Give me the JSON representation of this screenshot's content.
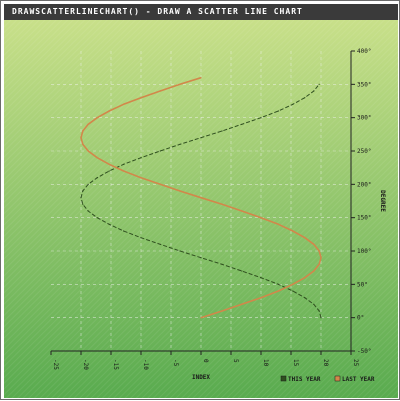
{
  "title": "DRAWSCATTERLINECHART() - DRAW A SCATTER LINE CHART",
  "colors": {
    "background_top": "#cde28c",
    "background_bottom": "#59ab4f",
    "title_bar": "#3a3a3a",
    "this_year": "#2f4f1f",
    "last_year": "#d2874a",
    "grid": "#f2f2f2",
    "axis": "#222222"
  },
  "chart_data": {
    "type": "scatter",
    "xlabel": "INDEX",
    "ylabel": "DEGREE",
    "xlim": [
      -25,
      25
    ],
    "ylim": [
      -50,
      400
    ],
    "x_ticks": [
      "-25",
      "-20",
      "-15",
      "-10",
      "-5",
      "0",
      "5",
      "10",
      "15",
      "20",
      "25"
    ],
    "y_ticks": [
      "-50°",
      "0°",
      "50°",
      "100°",
      "150°",
      "200°",
      "250°",
      "300°",
      "350°",
      "400°"
    ],
    "grid": true,
    "legend_position": "bottom-right",
    "legend": [
      "THIS YEAR",
      "LAST YEAR"
    ],
    "series": [
      {
        "name": "THIS YEAR",
        "style": "dashed",
        "points": [
          [
            20.0,
            0
          ],
          [
            19.7,
            10
          ],
          [
            18.8,
            20
          ],
          [
            17.3,
            30
          ],
          [
            15.3,
            40
          ],
          [
            12.9,
            50
          ],
          [
            10.0,
            60
          ],
          [
            6.8,
            70
          ],
          [
            3.5,
            80
          ],
          [
            0.0,
            90
          ],
          [
            -3.5,
            100
          ],
          [
            -6.8,
            110
          ],
          [
            -10.0,
            120
          ],
          [
            -12.9,
            130
          ],
          [
            -15.3,
            140
          ],
          [
            -17.3,
            150
          ],
          [
            -18.8,
            160
          ],
          [
            -19.7,
            170
          ],
          [
            -20.0,
            180
          ],
          [
            -19.7,
            190
          ],
          [
            -18.8,
            200
          ],
          [
            -17.3,
            210
          ],
          [
            -15.3,
            220
          ],
          [
            -12.9,
            230
          ],
          [
            -10.0,
            240
          ],
          [
            -6.8,
            250
          ],
          [
            -3.5,
            260
          ],
          [
            0.0,
            270
          ],
          [
            3.5,
            280
          ],
          [
            6.8,
            290
          ],
          [
            10.0,
            300
          ],
          [
            12.9,
            310
          ],
          [
            15.3,
            320
          ],
          [
            17.3,
            330
          ],
          [
            18.8,
            340
          ],
          [
            19.7,
            350
          ]
        ]
      },
      {
        "name": "LAST YEAR",
        "style": "solid",
        "points": [
          [
            0.0,
            0
          ],
          [
            3.5,
            10
          ],
          [
            6.8,
            20
          ],
          [
            10.0,
            30
          ],
          [
            12.9,
            40
          ],
          [
            15.3,
            50
          ],
          [
            17.3,
            60
          ],
          [
            18.8,
            70
          ],
          [
            19.7,
            80
          ],
          [
            20.0,
            90
          ],
          [
            19.7,
            100
          ],
          [
            18.8,
            110
          ],
          [
            17.3,
            120
          ],
          [
            15.3,
            130
          ],
          [
            12.9,
            140
          ],
          [
            10.0,
            150
          ],
          [
            6.8,
            160
          ],
          [
            3.5,
            170
          ],
          [
            0.0,
            180
          ],
          [
            -3.5,
            190
          ],
          [
            -6.8,
            200
          ],
          [
            -10.0,
            210
          ],
          [
            -12.9,
            220
          ],
          [
            -15.3,
            230
          ],
          [
            -17.3,
            240
          ],
          [
            -18.8,
            250
          ],
          [
            -19.7,
            260
          ],
          [
            -20.0,
            270
          ],
          [
            -19.7,
            280
          ],
          [
            -18.8,
            290
          ],
          [
            -17.3,
            300
          ],
          [
            -15.3,
            310
          ],
          [
            -12.9,
            320
          ],
          [
            -10.0,
            330
          ],
          [
            -6.8,
            340
          ],
          [
            -3.5,
            350
          ],
          [
            0.0,
            360
          ]
        ]
      }
    ]
  }
}
